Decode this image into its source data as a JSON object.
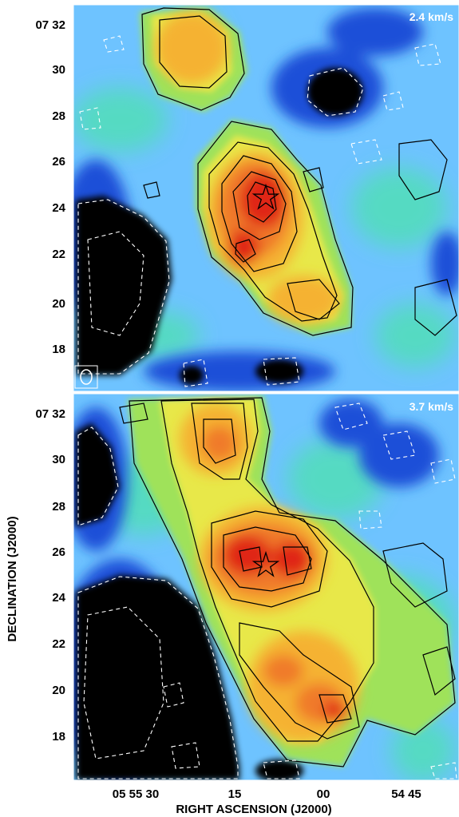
{
  "chart_data": {
    "type": "heatmap",
    "subtype": "channel-map",
    "xlabel": "RIGHT ASCENSION (J2000)",
    "ylabel": "DECLINATION (J2000)",
    "x_tick_labels": [
      "05 55 30",
      "15",
      "00",
      "54 45"
    ],
    "y_tick_labels": [
      "07 32",
      "30",
      "28",
      "26",
      "24",
      "22",
      "20",
      "18"
    ],
    "colormap": [
      "#000000",
      "#0a0a9a",
      "#1f4fd8",
      "#6ec3ff",
      "#4fe0b4",
      "#9fe25a",
      "#e8e84a",
      "#f5b233",
      "#f07a2a",
      "#e02818"
    ],
    "contours": {
      "positive": "solid-black",
      "negative": "dashed-white"
    },
    "marker": "star",
    "beam": "ellipse-bottom-left",
    "panels": [
      {
        "label": "2.4 km/s",
        "peaks": [
          {
            "ra": "05 55 11",
            "dec": "07 24.3",
            "level": 1.0
          },
          {
            "ra": "05 55 13",
            "dec": "07 22.5",
            "level": 0.9
          },
          {
            "ra": "05 55 20",
            "dec": "07 31.0",
            "level": 0.75
          },
          {
            "ra": "05 55 00",
            "dec": "07 19.5",
            "level": 0.7
          }
        ],
        "troughs": [
          {
            "ra": "05 55 37",
            "dec": "07 21.0"
          },
          {
            "ra": "05 54 59",
            "dec": "07 29.0"
          }
        ]
      },
      {
        "label": "3.7 km/s",
        "peaks": [
          {
            "ra": "05 55 13",
            "dec": "07 25.2",
            "level": 1.0
          },
          {
            "ra": "05 55 04",
            "dec": "07 25.0",
            "level": 0.95
          },
          {
            "ra": "05 55 17",
            "dec": "07 30.6",
            "level": 0.85
          },
          {
            "ra": "05 55 01",
            "dec": "07 19.2",
            "level": 0.9
          },
          {
            "ra": "05 55 08",
            "dec": "07 20.5",
            "level": 0.8
          }
        ],
        "troughs": [
          {
            "ra": "05 55 37",
            "dec": "07 20.0"
          },
          {
            "ra": "05 55 40",
            "dec": "07 29.5"
          }
        ]
      }
    ]
  }
}
